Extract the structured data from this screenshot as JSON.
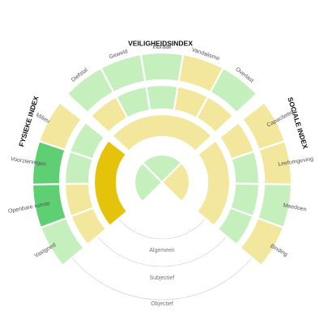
{
  "chart_data": {
    "type": "sunburst",
    "colors": {
      "light_green": "#c5efbd",
      "green": "#5ecf73",
      "light_yellow": "#f3e79d",
      "yellow": "#e5c30b"
    },
    "indexes": [
      {
        "id": "fysiek",
        "title": "FYSIEKE INDEX"
      },
      {
        "id": "veiligheid",
        "title": "VEILIGHEIDSINDEX"
      },
      {
        "id": "sociaal",
        "title": "SOCIALE INDEX"
      }
    ],
    "ring_labels": {
      "algemeen": "Algemeen",
      "subjectief": "Subjectief",
      "objectief": "Objectief"
    },
    "objectief": [
      {
        "label": "Vastgoed",
        "color": "light_green"
      },
      {
        "label": "Openbare ruimte",
        "color": "green"
      },
      {
        "label": "Voorzieningen",
        "color": "green"
      },
      {
        "label": "Milieu",
        "color": "light_yellow"
      },
      {
        "label": "Diefstal",
        "color": "light_green"
      },
      {
        "label": "Geweld",
        "color": "light_green"
      },
      {
        "label": "Inbraak",
        "color": "light_green"
      },
      {
        "label": "Vandalisme",
        "color": "light_yellow"
      },
      {
        "label": "Overlast",
        "color": "light_green"
      },
      {
        "label": "Capaciteiten",
        "color": "light_yellow"
      },
      {
        "label": "Leefomgeving",
        "color": "light_yellow"
      },
      {
        "label": "Meedoen",
        "color": "light_green"
      },
      {
        "label": "Binding",
        "color": "light_yellow"
      }
    ],
    "subjectief": [
      {
        "color": "light_yellow"
      },
      {
        "color": "light_yellow"
      },
      {
        "color": "light_green"
      },
      {
        "color": "light_green"
      },
      {
        "color": "light_yellow"
      },
      {
        "color": "light_green"
      },
      {
        "color": "light_green"
      },
      {
        "color": "light_yellow"
      },
      {
        "color": "light_yellow"
      },
      {
        "color": "light_yellow"
      },
      {
        "color": "light_green"
      },
      {
        "color": "light_green"
      },
      {
        "color": "light_green"
      }
    ],
    "algemeen": [
      {
        "index": "fysiek",
        "color": "yellow"
      },
      {
        "index": "veiligheid",
        "color": "light_yellow"
      },
      {
        "index": "sociaal",
        "color": "light_yellow"
      }
    ],
    "center": [
      {
        "index": "fysiek",
        "color": "light_green"
      },
      {
        "index": "veiligheid",
        "color": "light_green"
      },
      {
        "index": "sociaal",
        "color": "light_yellow"
      }
    ]
  }
}
